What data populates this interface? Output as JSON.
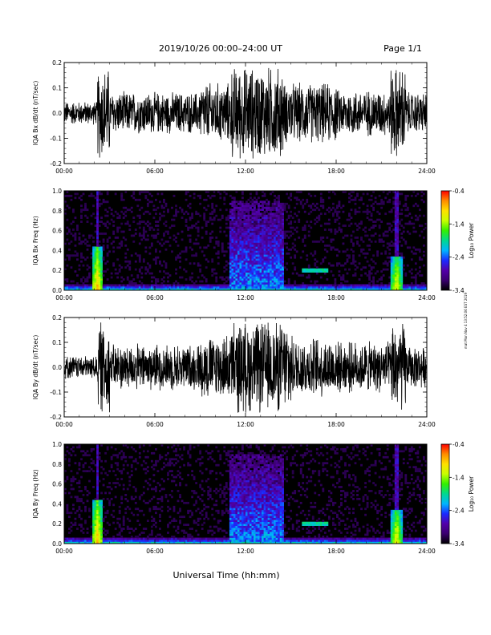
{
  "header": {
    "title": "2019/10/26  00:00–24:00 UT",
    "page": "Page 1/1"
  },
  "footer": {
    "xlabel": "Universal Time (hh:mm)",
    "side_note": "mat Mon Nov 4 13:52:06 EST 2019"
  },
  "colors": {
    "trace": "#000000",
    "spectrogram_background": "#000000",
    "colormap": [
      "#000000",
      "#3a006f",
      "#5200aa",
      "#1b2aff",
      "#00b4ff",
      "#00d890",
      "#33f000",
      "#c8ff00",
      "#ffe000",
      "#ff8c00",
      "#ff0000"
    ]
  },
  "chart_data": [
    {
      "type": "line",
      "ylabel": "IQA Bx dB/dt (nT/sec)",
      "xlim": [
        0,
        24
      ],
      "ylim": [
        -0.2,
        0.2
      ],
      "x_ticks": [
        "00:00",
        "06:00",
        "12:00",
        "18:00",
        "24:00"
      ],
      "y_ticks": [
        "-0.2",
        "-0.1",
        "0.0",
        "0.1",
        "0.2"
      ],
      "amplitude_envelope": [
        {
          "x": [
            0,
            2.2
          ],
          "y_abs": 0.05
        },
        {
          "x": [
            2.2,
            3.0
          ],
          "y_abs": 0.2
        },
        {
          "x": [
            3.0,
            9.0
          ],
          "y_abs": 0.09
        },
        {
          "x": [
            9.0,
            11.0
          ],
          "y_abs": 0.13
        },
        {
          "x": [
            11.0,
            14.5
          ],
          "y_abs": 0.2
        },
        {
          "x": [
            14.5,
            18.0
          ],
          "y_abs": 0.13
        },
        {
          "x": [
            18.0,
            21.6
          ],
          "y_abs": 0.1
        },
        {
          "x": [
            21.6,
            22.6
          ],
          "y_abs": 0.2
        },
        {
          "x": [
            22.6,
            24.0
          ],
          "y_abs": 0.09
        }
      ]
    },
    {
      "type": "heatmap",
      "ylabel": "IQA Bx Freq (Hz)",
      "xlim": [
        0,
        24
      ],
      "ylim": [
        0,
        1.0
      ],
      "x_ticks": [
        "00:00",
        "06:00",
        "12:00",
        "18:00",
        "24:00"
      ],
      "y_ticks": [
        "0.0",
        "0.2",
        "0.4",
        "0.6",
        "0.8",
        "1.0"
      ],
      "colorbar": {
        "label": "Log₁₀ Power",
        "range": [
          -3.4,
          -0.4
        ],
        "ticks": [
          "-3.4",
          "-2.4",
          "-1.4",
          "-0.4"
        ]
      },
      "features": [
        {
          "kind": "burst",
          "x": 2.2,
          "fmax": 0.45,
          "level": -1.0
        },
        {
          "kind": "burst",
          "x": 22.0,
          "fmax": 0.35,
          "level": -1.2
        },
        {
          "kind": "active-band",
          "x": [
            11.0,
            14.5
          ],
          "fmax": 0.9,
          "level": -2.3
        },
        {
          "kind": "tone",
          "x": [
            15.8,
            17.5
          ],
          "f": 0.2,
          "level": -2.1
        }
      ]
    },
    {
      "type": "line",
      "ylabel": "IQA By dB/dt (nT/sec)",
      "xlim": [
        0,
        24
      ],
      "ylim": [
        -0.2,
        0.2
      ],
      "x_ticks": [
        "00:00",
        "06:00",
        "12:00",
        "18:00",
        "24:00"
      ],
      "y_ticks": [
        "-0.2",
        "-0.1",
        "0.0",
        "0.1",
        "0.2"
      ],
      "amplitude_envelope": [
        {
          "x": [
            0,
            2.2
          ],
          "y_abs": 0.05
        },
        {
          "x": [
            2.2,
            3.0
          ],
          "y_abs": 0.2
        },
        {
          "x": [
            3.0,
            9.0
          ],
          "y_abs": 0.1
        },
        {
          "x": [
            9.0,
            11.0
          ],
          "y_abs": 0.14
        },
        {
          "x": [
            11.0,
            15.0
          ],
          "y_abs": 0.2
        },
        {
          "x": [
            15.0,
            18.0
          ],
          "y_abs": 0.13
        },
        {
          "x": [
            18.0,
            21.6
          ],
          "y_abs": 0.11
        },
        {
          "x": [
            21.6,
            22.6
          ],
          "y_abs": 0.2
        },
        {
          "x": [
            22.6,
            24.0
          ],
          "y_abs": 0.09
        }
      ]
    },
    {
      "type": "heatmap",
      "ylabel": "IQA By Freq (Hz)",
      "xlim": [
        0,
        24
      ],
      "ylim": [
        0,
        1.0
      ],
      "x_ticks": [
        "00:00",
        "06:00",
        "12:00",
        "18:00",
        "24:00"
      ],
      "y_ticks": [
        "0.0",
        "0.2",
        "0.4",
        "0.6",
        "0.8",
        "1.0"
      ],
      "colorbar": {
        "label": "Log₁₀ Power",
        "range": [
          -3.4,
          -0.4
        ],
        "ticks": [
          "-3.4",
          "-2.4",
          "-1.4",
          "-0.4"
        ]
      },
      "features": [
        {
          "kind": "burst",
          "x": 2.2,
          "fmax": 0.45,
          "level": -1.0
        },
        {
          "kind": "burst",
          "x": 22.0,
          "fmax": 0.35,
          "level": -1.2
        },
        {
          "kind": "active-band",
          "x": [
            11.0,
            14.5
          ],
          "fmax": 0.9,
          "level": -2.3
        },
        {
          "kind": "tone",
          "x": [
            15.8,
            17.5
          ],
          "f": 0.2,
          "level": -2.1
        }
      ]
    }
  ]
}
